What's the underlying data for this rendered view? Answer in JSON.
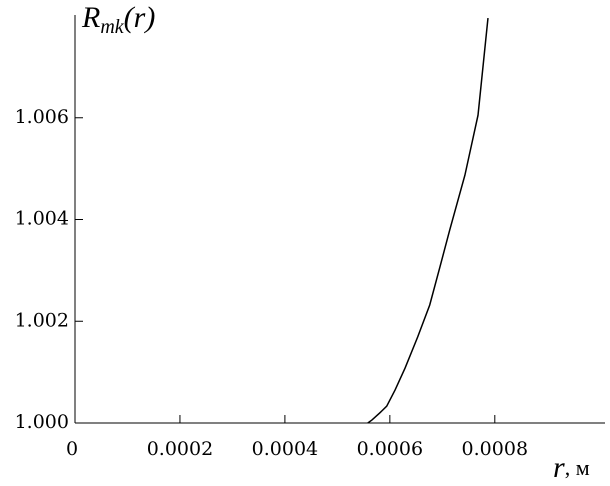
{
  "chart_data": {
    "type": "line",
    "ylabel": {
      "symbol": "R",
      "subscript": "mk",
      "argument": "(r)"
    },
    "xlabel": {
      "symbol": "r",
      "unit": ", м"
    },
    "x": [
      0.000558,
      0.000566,
      0.000581,
      0.000594,
      0.00061,
      0.000629,
      0.000653,
      0.000676,
      0.000695,
      0.000714,
      0.000743,
      0.000768,
      0.000787
    ],
    "series": [
      {
        "color": "#000000",
        "values": [
          1.0,
          1.00006,
          1.0002,
          1.00033,
          1.00065,
          1.00108,
          1.00169,
          1.00232,
          1.00305,
          1.00379,
          1.00487,
          1.00605,
          1.00796
        ]
      }
    ],
    "xlim": [
      0,
      0.00101
    ],
    "ylim": [
      1.0,
      1.00802
    ],
    "xticks": [
      0,
      0.0002,
      0.0004,
      0.0006,
      0.0008
    ],
    "yticks": [
      {
        "value": 1.0,
        "label": "1.000"
      },
      {
        "value": 1.002,
        "label": "1.002"
      },
      {
        "value": 1.004,
        "label": "1.004"
      },
      {
        "value": 1.006,
        "label": "1.006"
      }
    ]
  }
}
